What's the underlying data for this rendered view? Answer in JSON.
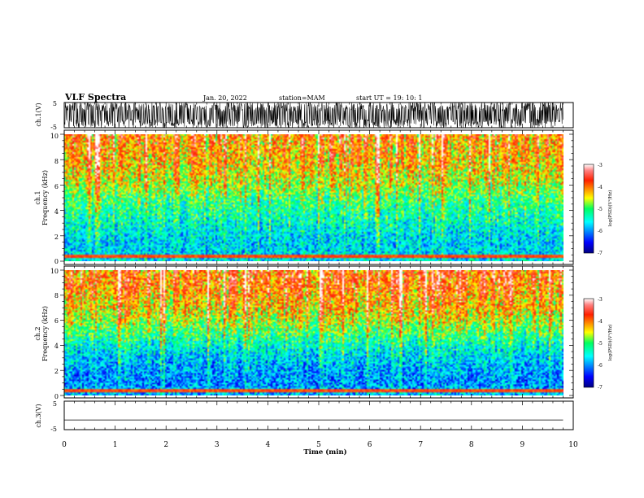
{
  "header": {
    "title": "VLF Spectra",
    "date": "Jan. 20, 2022",
    "station": "station=MAM",
    "start": "start UT =   19: 10: 1"
  },
  "chart_data": [
    {
      "type": "line",
      "panel": "ch1-waveform",
      "ylabel": "ch.1(V)",
      "ylim": [
        -5,
        5
      ],
      "yticks": [
        "5",
        "-5"
      ],
      "xlim": [
        0,
        10
      ],
      "description_values": {
        "signal": "dense spiky waveform spanning roughly -5 to 5 V",
        "end_time_min": 9.8
      }
    },
    {
      "type": "heatmap",
      "panel": "ch1-spectrogram",
      "ylabel_line1": "ch.1",
      "ylabel_line2": "Frequency (kHz)",
      "ylim": [
        0,
        10
      ],
      "yticks": [
        "0",
        "2",
        "4",
        "6",
        "8",
        "10"
      ],
      "xlim": [
        0,
        9.8
      ],
      "colorbar": {
        "label": "log(PSD)(V²/Hz)",
        "range": [
          -7,
          -3
        ],
        "ticks": [
          "-3",
          "-4",
          "-5",
          "-6",
          "-7"
        ]
      },
      "freq_profile_kHz": [
        0,
        1,
        2,
        3,
        4,
        5,
        6,
        7,
        8,
        9,
        10
      ],
      "freq_profile_logpsd": [
        -5.6,
        -5.7,
        -5.6,
        -5.4,
        -5.2,
        -5.0,
        -4.6,
        -4.4,
        -4.2,
        -4.1,
        -4.0
      ]
    },
    {
      "type": "heatmap",
      "panel": "ch2-spectrogram",
      "ylabel_line1": "ch.2",
      "ylabel_line2": "Frequency (kHz)",
      "ylim": [
        0,
        10
      ],
      "yticks": [
        "0",
        "2",
        "4",
        "6",
        "8",
        "10"
      ],
      "xlim": [
        0,
        9.8
      ],
      "colorbar": {
        "label": "log(PSD)(V²/Hz)",
        "range": [
          -7,
          -3
        ],
        "ticks": [
          "-3",
          "-4",
          "-5",
          "-6",
          "-7"
        ]
      },
      "freq_profile_kHz": [
        0,
        1,
        2,
        3,
        4,
        5,
        6,
        7,
        8,
        9,
        10
      ],
      "freq_profile_logpsd": [
        -5.8,
        -6.0,
        -5.9,
        -5.7,
        -5.4,
        -5.0,
        -4.6,
        -4.3,
        -4.1,
        -3.9,
        -3.9
      ]
    },
    {
      "type": "line",
      "panel": "ch3-waveform",
      "ylabel": "ch.3(V)",
      "ylim": [
        -5,
        5
      ],
      "yticks": [
        "5",
        "-5"
      ],
      "xlim": [
        0,
        10
      ],
      "x": [
        0,
        9.8
      ],
      "y": [
        -1.6,
        -1.6
      ]
    }
  ],
  "xaxis": {
    "label": "Time (min)",
    "ticks": [
      "0",
      "1",
      "2",
      "3",
      "4",
      "5",
      "6",
      "7",
      "8",
      "9",
      "10"
    ],
    "range": [
      0,
      10
    ]
  }
}
